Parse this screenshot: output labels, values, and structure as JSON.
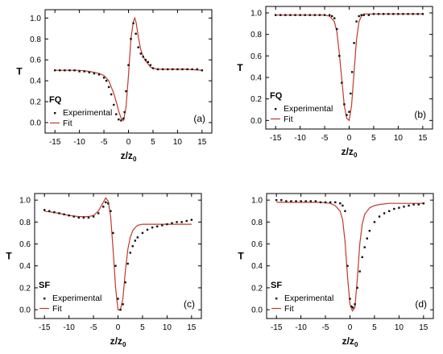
{
  "colors": {
    "fit": "#c0392b",
    "experimental": "#111111",
    "axis": "#000000"
  },
  "chart_data": [
    {
      "type": "scatter",
      "panel_label": "(a)",
      "sample_label": "FQ",
      "xlabel": "z/z₀",
      "ylabel": "T",
      "xlim": [
        -17,
        17
      ],
      "ylim": [
        -0.1,
        1.08
      ],
      "xticks": [
        "-15",
        "-10",
        "-5",
        "0",
        "5",
        "10",
        "15"
      ],
      "yticks": [
        "0.0",
        "0.2",
        "0.4",
        "0.6",
        "0.8",
        "1.0"
      ],
      "legend": {
        "position": "bottom-left",
        "entries": [
          "Experimental",
          "Fit"
        ]
      },
      "series": [
        {
          "name": "Experimental",
          "kind": "markers",
          "x": [
            -15,
            -14,
            -13,
            -12,
            -11,
            -10,
            -9,
            -8,
            -7,
            -6,
            -5,
            -4.5,
            -4,
            -3.5,
            -3,
            -2.5,
            -2,
            -1.5,
            -1,
            -0.8,
            -0.5,
            0,
            0.5,
            1,
            1.5,
            2,
            2.5,
            3,
            3.5,
            4,
            4.5,
            5,
            6,
            7,
            8,
            9,
            10,
            11,
            12,
            13,
            14,
            15
          ],
          "y": [
            0.5,
            0.5,
            0.5,
            0.5,
            0.5,
            0.49,
            0.49,
            0.48,
            0.47,
            0.46,
            0.43,
            0.4,
            0.34,
            0.27,
            0.17,
            0.08,
            0.03,
            0.02,
            0.04,
            0.1,
            0.3,
            0.55,
            0.8,
            0.95,
            0.85,
            0.72,
            0.66,
            0.63,
            0.6,
            0.58,
            0.55,
            0.52,
            0.51,
            0.51,
            0.51,
            0.51,
            0.51,
            0.51,
            0.51,
            0.51,
            0.51,
            0.5
          ]
        },
        {
          "name": "Fit",
          "kind": "line",
          "x": [
            -15,
            -12,
            -10,
            -8,
            -6,
            -5,
            -4,
            -3,
            -2.5,
            -2,
            -1.5,
            -1,
            -0.5,
            0,
            0.5,
            1,
            1.3,
            1.6,
            2,
            2.5,
            3,
            3.5,
            4,
            4.5,
            5,
            6,
            8,
            10,
            12,
            15
          ],
          "y": [
            0.5,
            0.5,
            0.5,
            0.49,
            0.47,
            0.45,
            0.4,
            0.28,
            0.2,
            0.11,
            0.04,
            0.02,
            0.15,
            0.45,
            0.8,
            0.97,
            1.0,
            0.95,
            0.82,
            0.7,
            0.63,
            0.59,
            0.56,
            0.53,
            0.52,
            0.51,
            0.51,
            0.51,
            0.51,
            0.5
          ]
        }
      ]
    },
    {
      "type": "scatter",
      "panel_label": "(b)",
      "sample_label": "FQ",
      "xlabel": "z/z₀",
      "ylabel": "T",
      "xlim": [
        -17,
        17
      ],
      "ylim": [
        -0.08,
        1.06
      ],
      "xticks": [
        "-15",
        "-10",
        "-5",
        "0",
        "5",
        "10",
        "15"
      ],
      "yticks": [
        "0.0",
        "0.2",
        "0.4",
        "0.6",
        "0.8",
        "1.0"
      ],
      "legend": {
        "position": "bottom-left",
        "entries": [
          "Experimental",
          "Fit"
        ]
      },
      "series": [
        {
          "name": "Experimental",
          "kind": "markers",
          "x": [
            -15,
            -14,
            -13,
            -12,
            -11,
            -10,
            -9,
            -8,
            -7,
            -6,
            -5,
            -4,
            -3.5,
            -3,
            -2.5,
            -2,
            -1.5,
            -1,
            -0.5,
            0,
            0.3,
            0.6,
            1,
            1.5,
            2,
            2.5,
            3,
            4,
            5,
            6,
            7,
            8,
            9,
            10,
            11,
            12,
            13,
            14,
            15
          ],
          "y": [
            0.98,
            0.98,
            0.98,
            0.98,
            0.98,
            0.98,
            0.98,
            0.98,
            0.98,
            0.98,
            0.98,
            0.98,
            0.97,
            0.95,
            0.85,
            0.6,
            0.35,
            0.15,
            0.05,
            0.08,
            0.25,
            0.45,
            0.72,
            0.92,
            0.97,
            0.98,
            0.98,
            0.98,
            0.99,
            0.99,
            0.99,
            0.99,
            0.99,
            0.99,
            0.99,
            0.99,
            0.99,
            0.99,
            0.99
          ]
        },
        {
          "name": "Fit",
          "kind": "line",
          "x": [
            -15,
            -10,
            -6,
            -5,
            -4,
            -3,
            -2.5,
            -2,
            -1.5,
            -1,
            -0.5,
            0,
            0.5,
            1,
            1.5,
            2,
            2.5,
            3,
            4,
            5,
            8,
            10,
            15
          ],
          "y": [
            0.98,
            0.98,
            0.98,
            0.98,
            0.97,
            0.92,
            0.82,
            0.62,
            0.38,
            0.14,
            0.02,
            0.0,
            0.14,
            0.45,
            0.75,
            0.92,
            0.97,
            0.99,
            0.99,
            0.99,
            0.99,
            0.99,
            0.99
          ]
        }
      ]
    },
    {
      "type": "scatter",
      "panel_label": "(c)",
      "sample_label": "SF",
      "xlabel": "z/z₀",
      "ylabel": "T",
      "xlim": [
        -17,
        17
      ],
      "ylim": [
        -0.08,
        1.06
      ],
      "xticks": [
        "-15",
        "-10",
        "-5",
        "0",
        "5",
        "10",
        "15"
      ],
      "yticks": [
        "0.0",
        "0.2",
        "0.4",
        "0.6",
        "0.8",
        "1.0"
      ],
      "legend": {
        "position": "bottom-left",
        "entries": [
          "Experimental",
          "Fit"
        ]
      },
      "series": [
        {
          "name": "Experimental",
          "kind": "markers",
          "x": [
            -15,
            -14,
            -13,
            -12,
            -11,
            -10,
            -9,
            -8,
            -7,
            -6,
            -5,
            -4,
            -3,
            -2.5,
            -2,
            -1.5,
            -1,
            -0.5,
            0,
            0.5,
            1,
            1.5,
            2,
            2.5,
            3,
            3.5,
            4,
            5,
            6,
            7,
            8,
            9,
            10,
            11,
            12,
            13,
            14,
            15
          ],
          "y": [
            0.91,
            0.9,
            0.89,
            0.88,
            0.87,
            0.86,
            0.85,
            0.84,
            0.84,
            0.84,
            0.85,
            0.88,
            0.94,
            0.98,
            0.97,
            0.9,
            0.7,
            0.4,
            0.1,
            0.0,
            0.05,
            0.25,
            0.42,
            0.52,
            0.58,
            0.63,
            0.66,
            0.7,
            0.73,
            0.75,
            0.76,
            0.77,
            0.78,
            0.79,
            0.8,
            0.8,
            0.81,
            0.82
          ]
        },
        {
          "name": "Fit",
          "kind": "line",
          "x": [
            -15,
            -12,
            -10,
            -8,
            -6,
            -5,
            -4,
            -3,
            -2.5,
            -2,
            -1.5,
            -1,
            -0.5,
            0,
            0.5,
            1,
            1.5,
            2,
            2.5,
            3,
            3.5,
            4,
            5,
            6,
            8,
            10,
            12,
            15
          ],
          "y": [
            0.9,
            0.88,
            0.86,
            0.85,
            0.85,
            0.86,
            0.9,
            0.98,
            1.02,
            0.99,
            0.85,
            0.55,
            0.2,
            0.0,
            0.0,
            0.1,
            0.35,
            0.55,
            0.66,
            0.72,
            0.75,
            0.77,
            0.78,
            0.78,
            0.78,
            0.78,
            0.78,
            0.78
          ]
        }
      ]
    },
    {
      "type": "scatter",
      "panel_label": "(d)",
      "sample_label": "SF",
      "xlabel": "z/z₀",
      "ylabel": "T",
      "xlim": [
        -17,
        17
      ],
      "ylim": [
        -0.08,
        1.06
      ],
      "xticks": [
        "-15",
        "-10",
        "-5",
        "0",
        "5",
        "10",
        "15"
      ],
      "yticks": [
        "0.0",
        "0.2",
        "0.4",
        "0.6",
        "0.8",
        "1.0"
      ],
      "legend": {
        "position": "bottom-left",
        "entries": [
          "Experimental",
          "Fit"
        ]
      },
      "series": [
        {
          "name": "Experimental",
          "kind": "markers",
          "x": [
            -15,
            -14,
            -13,
            -12,
            -11,
            -10,
            -9,
            -8,
            -7,
            -6,
            -5,
            -4,
            -3,
            -2,
            -1.5,
            -1,
            -0.5,
            0,
            0.3,
            0.6,
            1,
            1.5,
            2,
            2.5,
            3,
            3.5,
            4,
            5,
            6,
            7,
            8,
            9,
            10,
            11,
            12,
            13,
            14,
            15
          ],
          "y": [
            1.0,
            1.0,
            0.99,
            0.99,
            0.99,
            0.99,
            0.99,
            0.99,
            0.99,
            0.98,
            0.98,
            0.98,
            0.98,
            0.97,
            0.95,
            0.9,
            0.4,
            0.1,
            0.03,
            0.02,
            0.05,
            0.2,
            0.35,
            0.48,
            0.57,
            0.65,
            0.72,
            0.8,
            0.85,
            0.88,
            0.9,
            0.92,
            0.93,
            0.94,
            0.95,
            0.96,
            0.96,
            0.97
          ]
        },
        {
          "name": "Fit",
          "kind": "line",
          "x": [
            -15,
            -10,
            -6,
            -4,
            -3,
            -2,
            -1.5,
            -1,
            -0.5,
            0,
            0.5,
            1,
            1.5,
            2,
            2.5,
            3,
            4,
            5,
            6,
            8,
            10,
            12,
            15
          ],
          "y": [
            0.98,
            0.98,
            0.98,
            0.97,
            0.95,
            0.9,
            0.82,
            0.62,
            0.3,
            0.05,
            -0.01,
            0.02,
            0.28,
            0.6,
            0.78,
            0.87,
            0.93,
            0.95,
            0.96,
            0.97,
            0.97,
            0.97,
            0.97
          ]
        }
      ]
    }
  ]
}
